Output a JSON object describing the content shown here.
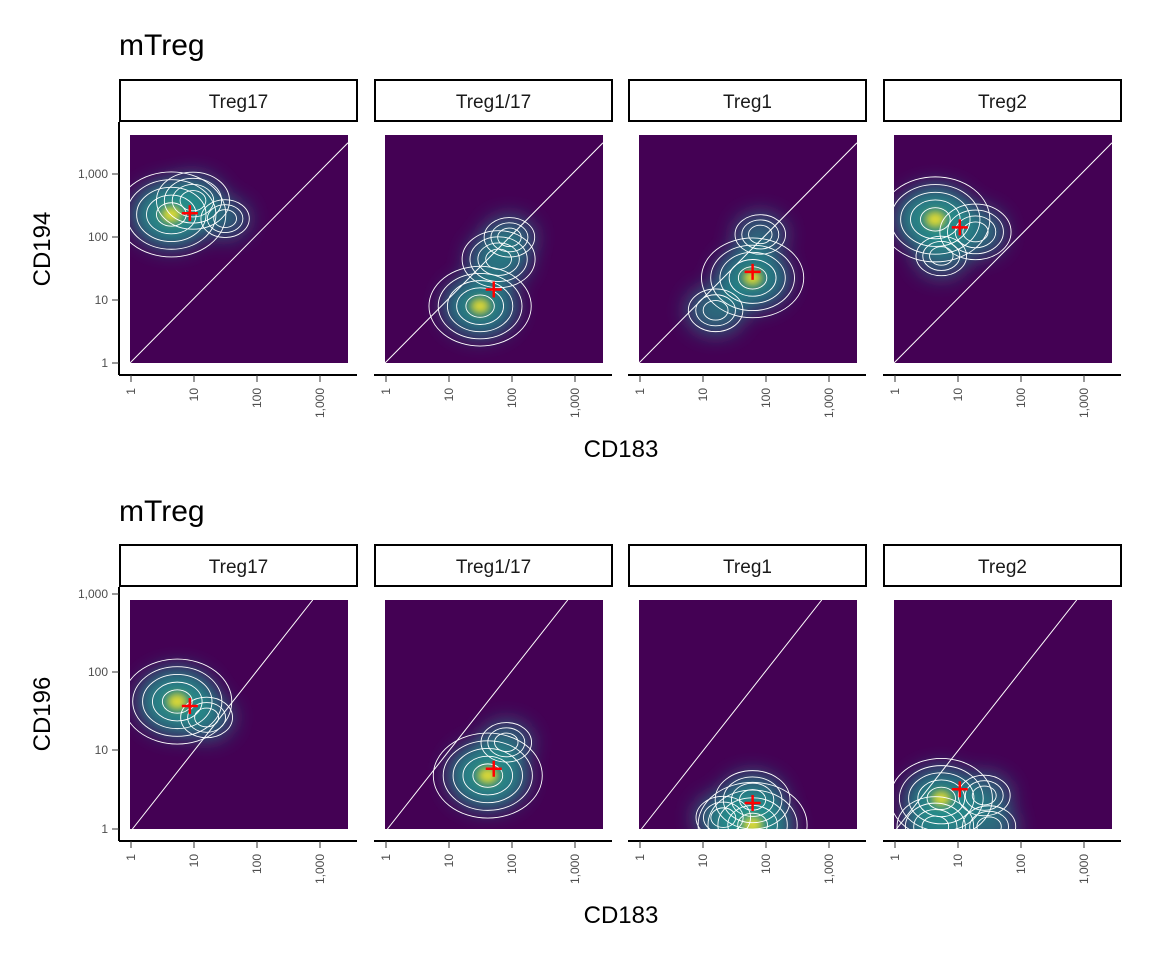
{
  "chart_data": [
    {
      "type": "density",
      "title": "mTreg",
      "xlabel": "CD183",
      "ylabel": "CD194",
      "x_scale": "log10",
      "y_scale": "log10",
      "x_ticks": [
        "1",
        "10",
        "100",
        "1,000"
      ],
      "y_ticks": [
        "1",
        "10",
        "100",
        "1,000"
      ],
      "xlim": [
        0.85,
        3000
      ],
      "ylim": [
        0.85,
        4000
      ],
      "reference_line": "y = x",
      "colors": {
        "fill_low": "#440154",
        "fill_mid": "#21918c",
        "fill_high": "#fde725",
        "contour": "#ffffff",
        "marker": "#ff0000"
      },
      "panels": [
        {
          "label": "Treg17",
          "marker": {
            "x": 8,
            "y": 220
          },
          "peaks": [
            {
              "x": 4,
              "y": 210,
              "w": 1.0
            },
            {
              "x": 9,
              "y": 350,
              "w": 0.55
            },
            {
              "x": 30,
              "y": 180,
              "w": 0.22
            }
          ]
        },
        {
          "label": "Treg1/17",
          "marker": {
            "x": 50,
            "y": 13
          },
          "peaks": [
            {
              "x": 30,
              "y": 7,
              "w": 0.85
            },
            {
              "x": 60,
              "y": 40,
              "w": 0.55
            },
            {
              "x": 90,
              "y": 90,
              "w": 0.3
            }
          ]
        },
        {
          "label": "Treg1",
          "marker": {
            "x": 60,
            "y": 25
          },
          "peaks": [
            {
              "x": 60,
              "y": 20,
              "w": 0.85
            },
            {
              "x": 15,
              "y": 6,
              "w": 0.45
            },
            {
              "x": 80,
              "y": 100,
              "w": 0.3
            }
          ]
        },
        {
          "label": "Treg2",
          "marker": {
            "x": 10,
            "y": 130
          },
          "peaks": [
            {
              "x": 4,
              "y": 175,
              "w": 1.0
            },
            {
              "x": 18,
              "y": 110,
              "w": 0.5
            },
            {
              "x": 5,
              "y": 45,
              "w": 0.3
            }
          ]
        }
      ]
    },
    {
      "type": "density",
      "title": "mTreg",
      "xlabel": "CD183",
      "ylabel": "CD196",
      "x_scale": "log10",
      "y_scale": "log10",
      "x_ticks": [
        "1",
        "10",
        "100",
        "1,000"
      ],
      "y_ticks": [
        "1",
        "10",
        "100",
        "1,000"
      ],
      "xlim": [
        0.85,
        3000
      ],
      "ylim": [
        0.93,
        800
      ],
      "reference_line": "y = x",
      "colors": {
        "fill_low": "#440154",
        "fill_mid": "#21918c",
        "fill_high": "#fde725",
        "contour": "#ffffff",
        "marker": "#ff0000"
      },
      "panels": [
        {
          "label": "Treg17",
          "marker": {
            "x": 8,
            "y": 35
          },
          "peaks": [
            {
              "x": 5,
              "y": 40,
              "w": 1.0
            },
            {
              "x": 15,
              "y": 25,
              "w": 0.35
            }
          ]
        },
        {
          "label": "Treg1/17",
          "marker": {
            "x": 50,
            "y": 5.5
          },
          "peaks": [
            {
              "x": 40,
              "y": 4.5,
              "w": 1.0
            },
            {
              "x": 80,
              "y": 12,
              "w": 0.3
            }
          ]
        },
        {
          "label": "Treg1",
          "marker": {
            "x": 60,
            "y": 2
          },
          "peaks": [
            {
              "x": 60,
              "y": 1.05,
              "w": 1.0
            },
            {
              "x": 60,
              "y": 2.2,
              "w": 0.6
            },
            {
              "x": 20,
              "y": 1.3,
              "w": 0.45
            }
          ]
        },
        {
          "label": "Treg2",
          "marker": {
            "x": 10,
            "y": 3
          },
          "peaks": [
            {
              "x": 5,
              "y": 2.3,
              "w": 0.85
            },
            {
              "x": 4,
              "y": 1.0,
              "w": 0.65
            },
            {
              "x": 30,
              "y": 1.0,
              "w": 0.4
            },
            {
              "x": 25,
              "y": 2.5,
              "w": 0.35
            }
          ]
        }
      ]
    }
  ]
}
